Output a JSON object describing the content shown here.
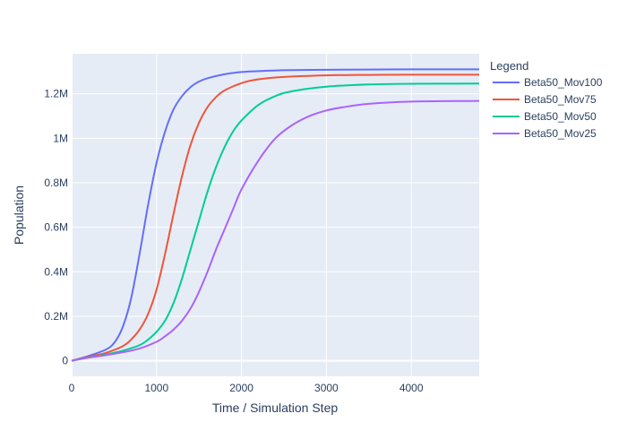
{
  "chart_data": {
    "type": "line",
    "xlabel": "Time / Simulation Step",
    "ylabel": "Population",
    "xlim": [
      0,
      4800
    ],
    "ylim": [
      -70000,
      1380000
    ],
    "x_ticks": [
      0,
      1000,
      2000,
      3000,
      4000
    ],
    "x_tick_labels": [
      "0",
      "1000",
      "2000",
      "3000",
      "4000"
    ],
    "y_ticks": [
      0,
      200000,
      400000,
      600000,
      800000,
      1000000,
      1200000
    ],
    "y_tick_labels": [
      "0",
      "0.2M",
      "0.4M",
      "0.6M",
      "0.8M",
      "1M",
      "1.2M"
    ],
    "grid": true,
    "legend": {
      "title": "Legend",
      "placement": "right"
    },
    "series": [
      {
        "name": "Beta50_Mov100",
        "color": "#636efa",
        "x": [
          0,
          200,
          400,
          500,
          600,
          700,
          800,
          900,
          1000,
          1100,
          1200,
          1300,
          1400,
          1500,
          1600,
          1800,
          2000,
          2200,
          2500,
          3000,
          3500,
          4000,
          4800
        ],
        "values": [
          0,
          22000,
          50000,
          80000,
          150000,
          280000,
          480000,
          700000,
          890000,
          1030000,
          1130000,
          1190000,
          1230000,
          1255000,
          1270000,
          1288000,
          1298000,
          1302000,
          1306000,
          1308000,
          1309000,
          1310000,
          1310000
        ]
      },
      {
        "name": "Beta50_Mov75",
        "color": "#ef553b",
        "x": [
          0,
          200,
          400,
          600,
          700,
          800,
          900,
          1000,
          1100,
          1200,
          1300,
          1400,
          1500,
          1600,
          1700,
          1800,
          2000,
          2200,
          2500,
          3000,
          3500,
          4000,
          4800
        ],
        "values": [
          0,
          18000,
          35000,
          65000,
          95000,
          140000,
          210000,
          320000,
          480000,
          660000,
          830000,
          970000,
          1070000,
          1140000,
          1185000,
          1215000,
          1248000,
          1265000,
          1276000,
          1283000,
          1285000,
          1286000,
          1286000
        ]
      },
      {
        "name": "Beta50_Mov50",
        "color": "#00cc96",
        "x": [
          0,
          200,
          400,
          600,
          800,
          900,
          1000,
          1100,
          1200,
          1300,
          1400,
          1500,
          1600,
          1700,
          1800,
          1900,
          2000,
          2200,
          2400,
          2600,
          3000,
          3500,
          4000,
          4800
        ],
        "values": [
          0,
          15000,
          28000,
          45000,
          70000,
          95000,
          130000,
          180000,
          260000,
          370000,
          500000,
          630000,
          760000,
          870000,
          960000,
          1030000,
          1080000,
          1150000,
          1190000,
          1212000,
          1232000,
          1242000,
          1245000,
          1246000
        ]
      },
      {
        "name": "Beta50_Mov25",
        "color": "#ab63fa",
        "x": [
          0,
          200,
          400,
          600,
          800,
          1000,
          1100,
          1200,
          1300,
          1400,
          1500,
          1600,
          1700,
          1800,
          1900,
          2000,
          2200,
          2400,
          2600,
          2800,
          3000,
          3200,
          3500,
          4000,
          4800
        ],
        "values": [
          0,
          14000,
          25000,
          38000,
          55000,
          85000,
          110000,
          140000,
          180000,
          235000,
          310000,
          400000,
          500000,
          590000,
          680000,
          770000,
          900000,
          1000000,
          1060000,
          1100000,
          1125000,
          1140000,
          1155000,
          1165000,
          1168000
        ]
      }
    ]
  }
}
